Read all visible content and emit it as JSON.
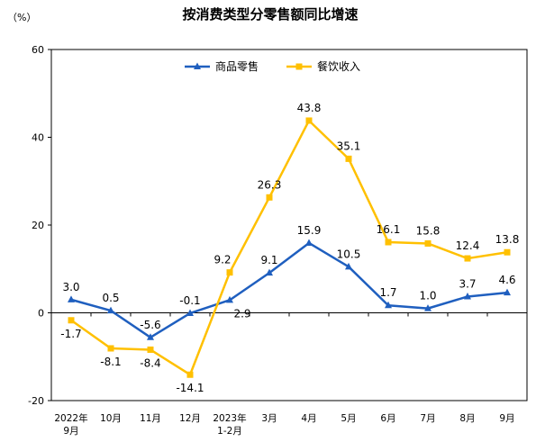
{
  "chart_data": {
    "type": "line",
    "title": "按消费类型分零售额同比增速",
    "ylabel": "（%）",
    "ylim": [
      -20,
      60
    ],
    "yticks": [
      -20,
      0,
      20,
      40,
      60
    ],
    "categories": [
      [
        "2022年",
        "9月"
      ],
      [
        "10月"
      ],
      [
        "11月"
      ],
      [
        "12月"
      ],
      [
        "2023年",
        "1-2月"
      ],
      [
        "3月"
      ],
      [
        "4月"
      ],
      [
        "5月"
      ],
      [
        "6月"
      ],
      [
        "7月"
      ],
      [
        "8月"
      ],
      [
        "9月"
      ]
    ],
    "legend_position": "top-center",
    "grid": false,
    "series": [
      {
        "name": "商品零售",
        "color": "#1f5fbf",
        "marker": "triangle",
        "values": [
          3.0,
          0.5,
          -5.6,
          -0.1,
          2.9,
          9.1,
          15.9,
          10.5,
          1.7,
          1.0,
          3.7,
          4.6
        ],
        "labels": [
          "3.0",
          "0.5",
          "-5.6",
          "-0.1",
          "2.9",
          "9.1",
          "15.9",
          "10.5",
          "1.7",
          "1.0",
          "3.7",
          "4.6"
        ]
      },
      {
        "name": "餐饮收入",
        "color": "#ffc000",
        "marker": "square",
        "values": [
          -1.7,
          -8.1,
          -8.4,
          -14.1,
          9.2,
          26.3,
          43.8,
          35.1,
          16.1,
          15.8,
          12.4,
          13.8
        ],
        "labels": [
          "-1.7",
          "-8.1",
          "-8.4",
          "-14.1",
          "9.2",
          "26.3",
          "43.8",
          "35.1",
          "16.1",
          "15.8",
          "12.4",
          "13.8"
        ]
      }
    ]
  }
}
